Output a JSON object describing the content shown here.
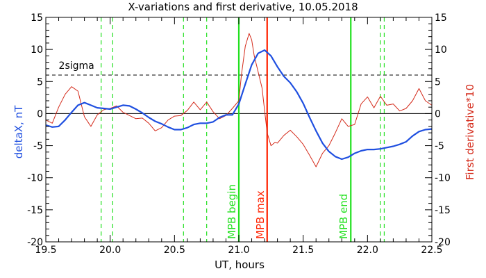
{
  "chart_data": {
    "type": "line",
    "title": "X-variations and first derivative, 10.05.2018",
    "xlabel": "UT, hours",
    "ylabel_left": "deltaX, nT",
    "ylabel_right": "First derivative*10",
    "xlim": [
      19.5,
      22.5
    ],
    "ylim": [
      -20,
      15
    ],
    "x_ticks": [
      "19.5",
      "20.0",
      "20.5",
      "21.0",
      "21.5",
      "22.0",
      "22.5"
    ],
    "y_ticks": [
      "15",
      "10",
      "5",
      "0",
      "-5",
      "-10",
      "-15",
      "-20"
    ],
    "colors": {
      "deltaX": "#1f4fe0",
      "derivative": "#d42a1a",
      "mpb_begin_end": "#22e01f",
      "mpb_max": "#ff2200",
      "threshold": "#000000"
    },
    "series": [
      {
        "x": [
          19.5,
          19.55,
          19.6,
          19.65,
          19.7,
          19.75,
          19.8,
          19.85,
          19.9,
          19.95,
          20.0,
          20.05,
          20.1,
          20.15,
          20.2,
          20.25,
          20.3,
          20.35,
          20.4,
          20.45,
          20.5,
          20.55,
          20.6,
          20.65,
          20.7,
          20.75,
          20.8,
          20.85,
          20.9,
          20.95,
          21.0,
          21.05,
          21.1,
          21.15,
          21.2,
          21.25,
          21.3,
          21.35,
          21.4,
          21.45,
          21.5,
          21.55,
          21.6,
          21.65,
          21.7,
          21.75,
          21.8,
          21.85,
          21.9,
          21.95,
          22.0,
          22.05,
          22.1,
          22.15,
          22.2,
          22.25,
          22.3,
          22.35,
          22.4,
          22.45,
          22.5
        ],
        "values": [
          -1.8,
          -2.1,
          -2.0,
          -1.0,
          0.2,
          1.3,
          1.7,
          1.3,
          0.9,
          0.8,
          0.7,
          1.0,
          1.3,
          1.2,
          0.7,
          0.1,
          -0.6,
          -1.2,
          -1.6,
          -2.1,
          -2.5,
          -2.5,
          -2.2,
          -1.7,
          -1.5,
          -1.5,
          -1.3,
          -0.6,
          -0.2,
          -0.2,
          1.5,
          4.6,
          7.6,
          9.4,
          9.9,
          9.0,
          7.3,
          5.8,
          4.8,
          3.4,
          1.6,
          -0.6,
          -2.7,
          -4.6,
          -5.9,
          -6.7,
          -7.1,
          -6.8,
          -6.2,
          -5.8,
          -5.6,
          -5.6,
          -5.5,
          -5.3,
          -5.1,
          -4.8,
          -4.4,
          -3.5,
          -2.8,
          -2.5,
          -2.4
        ]
      },
      {
        "x": [
          19.5,
          19.55,
          19.6,
          19.65,
          19.7,
          19.75,
          19.8,
          19.85,
          19.9,
          19.95,
          20.0,
          20.05,
          20.1,
          20.15,
          20.2,
          20.25,
          20.3,
          20.35,
          20.4,
          20.45,
          20.5,
          20.55,
          20.6,
          20.65,
          20.7,
          20.75,
          20.8,
          20.85,
          20.9,
          20.95,
          21.0,
          21.02,
          21.05,
          21.08,
          21.1,
          21.12,
          21.15,
          21.18,
          21.2,
          21.22,
          21.25,
          21.28,
          21.3,
          21.35,
          21.4,
          21.45,
          21.5,
          21.55,
          21.6,
          21.65,
          21.7,
          21.75,
          21.8,
          21.85,
          21.9,
          21.95,
          22.0,
          22.05,
          22.1,
          22.15,
          22.2,
          22.25,
          22.3,
          22.35,
          22.4,
          22.45,
          22.5
        ],
        "values": [
          -1.0,
          -1.5,
          1.0,
          3.0,
          4.2,
          3.5,
          -0.5,
          -2.0,
          -0.2,
          0.6,
          0.8,
          1.2,
          0.2,
          -0.3,
          -0.8,
          -0.7,
          -1.5,
          -2.7,
          -2.2,
          -1.0,
          -0.4,
          -0.3,
          0.5,
          1.8,
          0.6,
          1.8,
          0.3,
          -0.8,
          -0.3,
          0.8,
          2.0,
          6.0,
          10.5,
          12.5,
          11.5,
          9.0,
          6.5,
          4.0,
          0.5,
          -3.0,
          -5.0,
          -4.5,
          -4.6,
          -3.4,
          -2.6,
          -3.6,
          -4.8,
          -6.5,
          -8.3,
          -6.2,
          -5.0,
          -3.0,
          -0.8,
          -2.0,
          -1.7,
          1.5,
          2.6,
          0.9,
          2.7,
          1.3,
          1.5,
          0.4,
          0.8,
          2.0,
          3.9,
          2.0,
          1.3
        ]
      }
    ],
    "threshold": {
      "value": 6,
      "label": "2sigma"
    },
    "vertical_lines": [
      {
        "x": 21.0,
        "label": "MPB begin",
        "style": "solid"
      },
      {
        "x": 21.22,
        "label": "MPB max",
        "style": "solid"
      },
      {
        "x": 21.87,
        "label": "MPB end",
        "style": "solid"
      },
      {
        "x": 19.93,
        "label": "",
        "style": "dashed"
      },
      {
        "x": 20.02,
        "label": "",
        "style": "dashed"
      },
      {
        "x": 20.57,
        "label": "",
        "style": "dashed"
      },
      {
        "x": 20.75,
        "label": "",
        "style": "dashed"
      },
      {
        "x": 22.1,
        "label": "",
        "style": "dashed"
      },
      {
        "x": 22.13,
        "label": "",
        "style": "dashed"
      }
    ]
  }
}
